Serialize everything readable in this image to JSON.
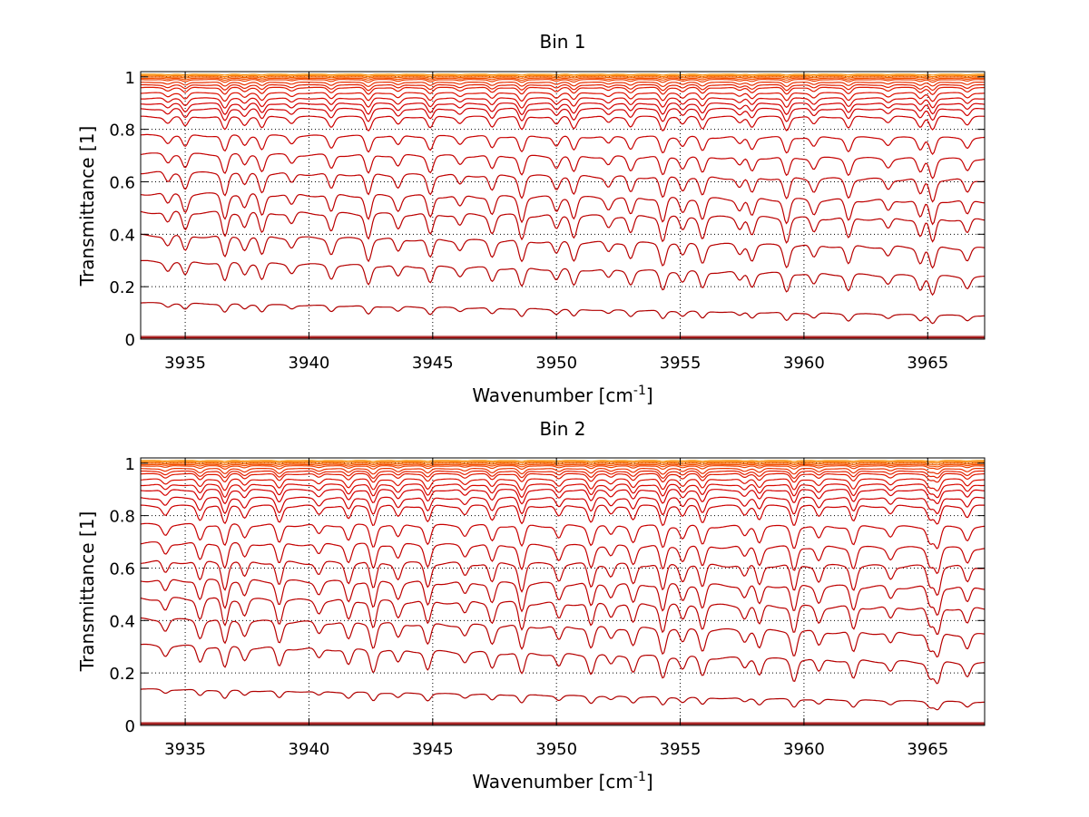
{
  "chart_data": [
    {
      "type": "line",
      "title": "Bin 1",
      "xlabel": "Wavenumber [cm",
      "xlabel_sup": "-1",
      "xlabel_end": "]",
      "ylabel": "Transmittance [1]",
      "xlim": [
        3933.2,
        3967.3
      ],
      "ylim": [
        0,
        1.02
      ],
      "xticks": [
        3935,
        3940,
        3945,
        3950,
        3955,
        3960,
        3965
      ],
      "yticks": [
        0,
        0.2,
        0.4,
        0.6,
        0.8,
        1
      ],
      "ytick_labels": [
        "0",
        "0.2",
        "0.4",
        "0.6",
        "0.8",
        "1"
      ],
      "grid": true,
      "grid_style": "dotted",
      "absorption_lines": [
        3934.3,
        3935.0,
        3936.6,
        3937.4,
        3938.1,
        3939.3,
        3940.9,
        3942.4,
        3943.6,
        3944.9,
        3946.1,
        3947.4,
        3948.6,
        3950.0,
        3950.7,
        3952.1,
        3953.0,
        3954.3,
        3955.1,
        3955.9,
        3957.4,
        3957.9,
        3959.3,
        3960.4,
        3961.8,
        3963.4,
        3964.7,
        3965.2,
        3966.6
      ],
      "series": [
        {
          "start": 0.005,
          "end": 0.005,
          "depth": 0.0,
          "color": "#8b0000"
        },
        {
          "start": 0.01,
          "end": 0.01,
          "depth": 0.0,
          "color": "#a00000"
        },
        {
          "start": 0.14,
          "end": 0.09,
          "depth": 0.03,
          "color": "#b00000"
        },
        {
          "start": 0.3,
          "end": 0.24,
          "depth": 0.07,
          "color": "#b50000"
        },
        {
          "start": 0.4,
          "end": 0.35,
          "depth": 0.08,
          "color": "#b80000"
        },
        {
          "start": 0.49,
          "end": 0.46,
          "depth": 0.09,
          "color": "#bb0000"
        },
        {
          "start": 0.56,
          "end": 0.53,
          "depth": 0.09,
          "color": "#be0000"
        },
        {
          "start": 0.64,
          "end": 0.61,
          "depth": 0.08,
          "color": "#c00000"
        },
        {
          "start": 0.71,
          "end": 0.69,
          "depth": 0.07,
          "color": "#c40000"
        },
        {
          "start": 0.78,
          "end": 0.77,
          "depth": 0.06,
          "color": "#c80000"
        },
        {
          "start": 0.85,
          "end": 0.85,
          "depth": 0.05,
          "color": "#cc0000"
        },
        {
          "start": 0.88,
          "end": 0.88,
          "depth": 0.045,
          "color": "#d00000"
        },
        {
          "start": 0.9,
          "end": 0.9,
          "depth": 0.04,
          "color": "#d40000"
        },
        {
          "start": 0.92,
          "end": 0.92,
          "depth": 0.035,
          "color": "#d80800"
        },
        {
          "start": 0.94,
          "end": 0.94,
          "depth": 0.03,
          "color": "#dc1000"
        },
        {
          "start": 0.96,
          "end": 0.96,
          "depth": 0.025,
          "color": "#e01800"
        },
        {
          "start": 0.97,
          "end": 0.97,
          "depth": 0.02,
          "color": "#e42000"
        },
        {
          "start": 0.98,
          "end": 0.98,
          "depth": 0.015,
          "color": "#e83000"
        },
        {
          "start": 0.99,
          "end": 0.99,
          "depth": 0.01,
          "color": "#ee4000"
        },
        {
          "start": 0.995,
          "end": 0.995,
          "depth": 0.007,
          "color": "#f25000"
        },
        {
          "start": 1.0,
          "end": 1.0,
          "depth": 0.005,
          "color": "#f66000"
        },
        {
          "start": 1.005,
          "end": 1.005,
          "depth": 0.004,
          "color": "#f87800"
        },
        {
          "start": 1.01,
          "end": 1.01,
          "depth": 0.003,
          "color": "#f99000"
        }
      ]
    },
    {
      "type": "line",
      "title": "Bin 2",
      "xlabel": "Wavenumber [cm",
      "xlabel_sup": "-1",
      "xlabel_end": "]",
      "ylabel": "Transmittance [1]",
      "xlim": [
        3933.2,
        3967.3
      ],
      "ylim": [
        0,
        1.02
      ],
      "xticks": [
        3935,
        3940,
        3945,
        3950,
        3955,
        3960,
        3965
      ],
      "yticks": [
        0,
        0.2,
        0.4,
        0.6,
        0.8,
        1
      ],
      "ytick_labels": [
        "0",
        "0.2",
        "0.4",
        "0.6",
        "0.8",
        "1"
      ],
      "grid": true,
      "grid_style": "dotted",
      "absorption_lines": [
        3934.2,
        3935.6,
        3936.6,
        3937.4,
        3938.8,
        3940.4,
        3941.6,
        3942.6,
        3943.6,
        3944.8,
        3946.3,
        3947.4,
        3948.6,
        3950.1,
        3951.4,
        3952.2,
        3953.1,
        3954.3,
        3955.1,
        3955.9,
        3957.6,
        3958.2,
        3959.6,
        3960.6,
        3962.0,
        3963.5,
        3965.1,
        3965.4,
        3966.6
      ],
      "series": [
        {
          "start": 0.005,
          "end": 0.005,
          "depth": 0.0,
          "color": "#8b0000"
        },
        {
          "start": 0.01,
          "end": 0.01,
          "depth": 0.0,
          "color": "#a00000"
        },
        {
          "start": 0.14,
          "end": 0.09,
          "depth": 0.03,
          "color": "#b00000"
        },
        {
          "start": 0.31,
          "end": 0.24,
          "depth": 0.08,
          "color": "#b50000"
        },
        {
          "start": 0.41,
          "end": 0.35,
          "depth": 0.09,
          "color": "#b80000"
        },
        {
          "start": 0.49,
          "end": 0.45,
          "depth": 0.1,
          "color": "#bb0000"
        },
        {
          "start": 0.56,
          "end": 0.53,
          "depth": 0.1,
          "color": "#be0000"
        },
        {
          "start": 0.63,
          "end": 0.61,
          "depth": 0.1,
          "color": "#c00000"
        },
        {
          "start": 0.7,
          "end": 0.68,
          "depth": 0.09,
          "color": "#c40000"
        },
        {
          "start": 0.77,
          "end": 0.76,
          "depth": 0.08,
          "color": "#c80000"
        },
        {
          "start": 0.84,
          "end": 0.84,
          "depth": 0.07,
          "color": "#cc0000"
        },
        {
          "start": 0.87,
          "end": 0.87,
          "depth": 0.06,
          "color": "#d00000"
        },
        {
          "start": 0.9,
          "end": 0.9,
          "depth": 0.05,
          "color": "#d40000"
        },
        {
          "start": 0.92,
          "end": 0.92,
          "depth": 0.045,
          "color": "#d80800"
        },
        {
          "start": 0.94,
          "end": 0.94,
          "depth": 0.04,
          "color": "#dc1000"
        },
        {
          "start": 0.96,
          "end": 0.96,
          "depth": 0.03,
          "color": "#e01800"
        },
        {
          "start": 0.97,
          "end": 0.97,
          "depth": 0.025,
          "color": "#e42000"
        },
        {
          "start": 0.98,
          "end": 0.98,
          "depth": 0.02,
          "color": "#e83000"
        },
        {
          "start": 0.99,
          "end": 0.99,
          "depth": 0.012,
          "color": "#ee4000"
        },
        {
          "start": 0.995,
          "end": 0.995,
          "depth": 0.008,
          "color": "#f25000"
        },
        {
          "start": 1.0,
          "end": 1.0,
          "depth": 0.006,
          "color": "#f66000"
        },
        {
          "start": 1.005,
          "end": 1.005,
          "depth": 0.004,
          "color": "#f87800"
        },
        {
          "start": 1.01,
          "end": 1.01,
          "depth": 0.003,
          "color": "#f99000"
        }
      ]
    }
  ]
}
